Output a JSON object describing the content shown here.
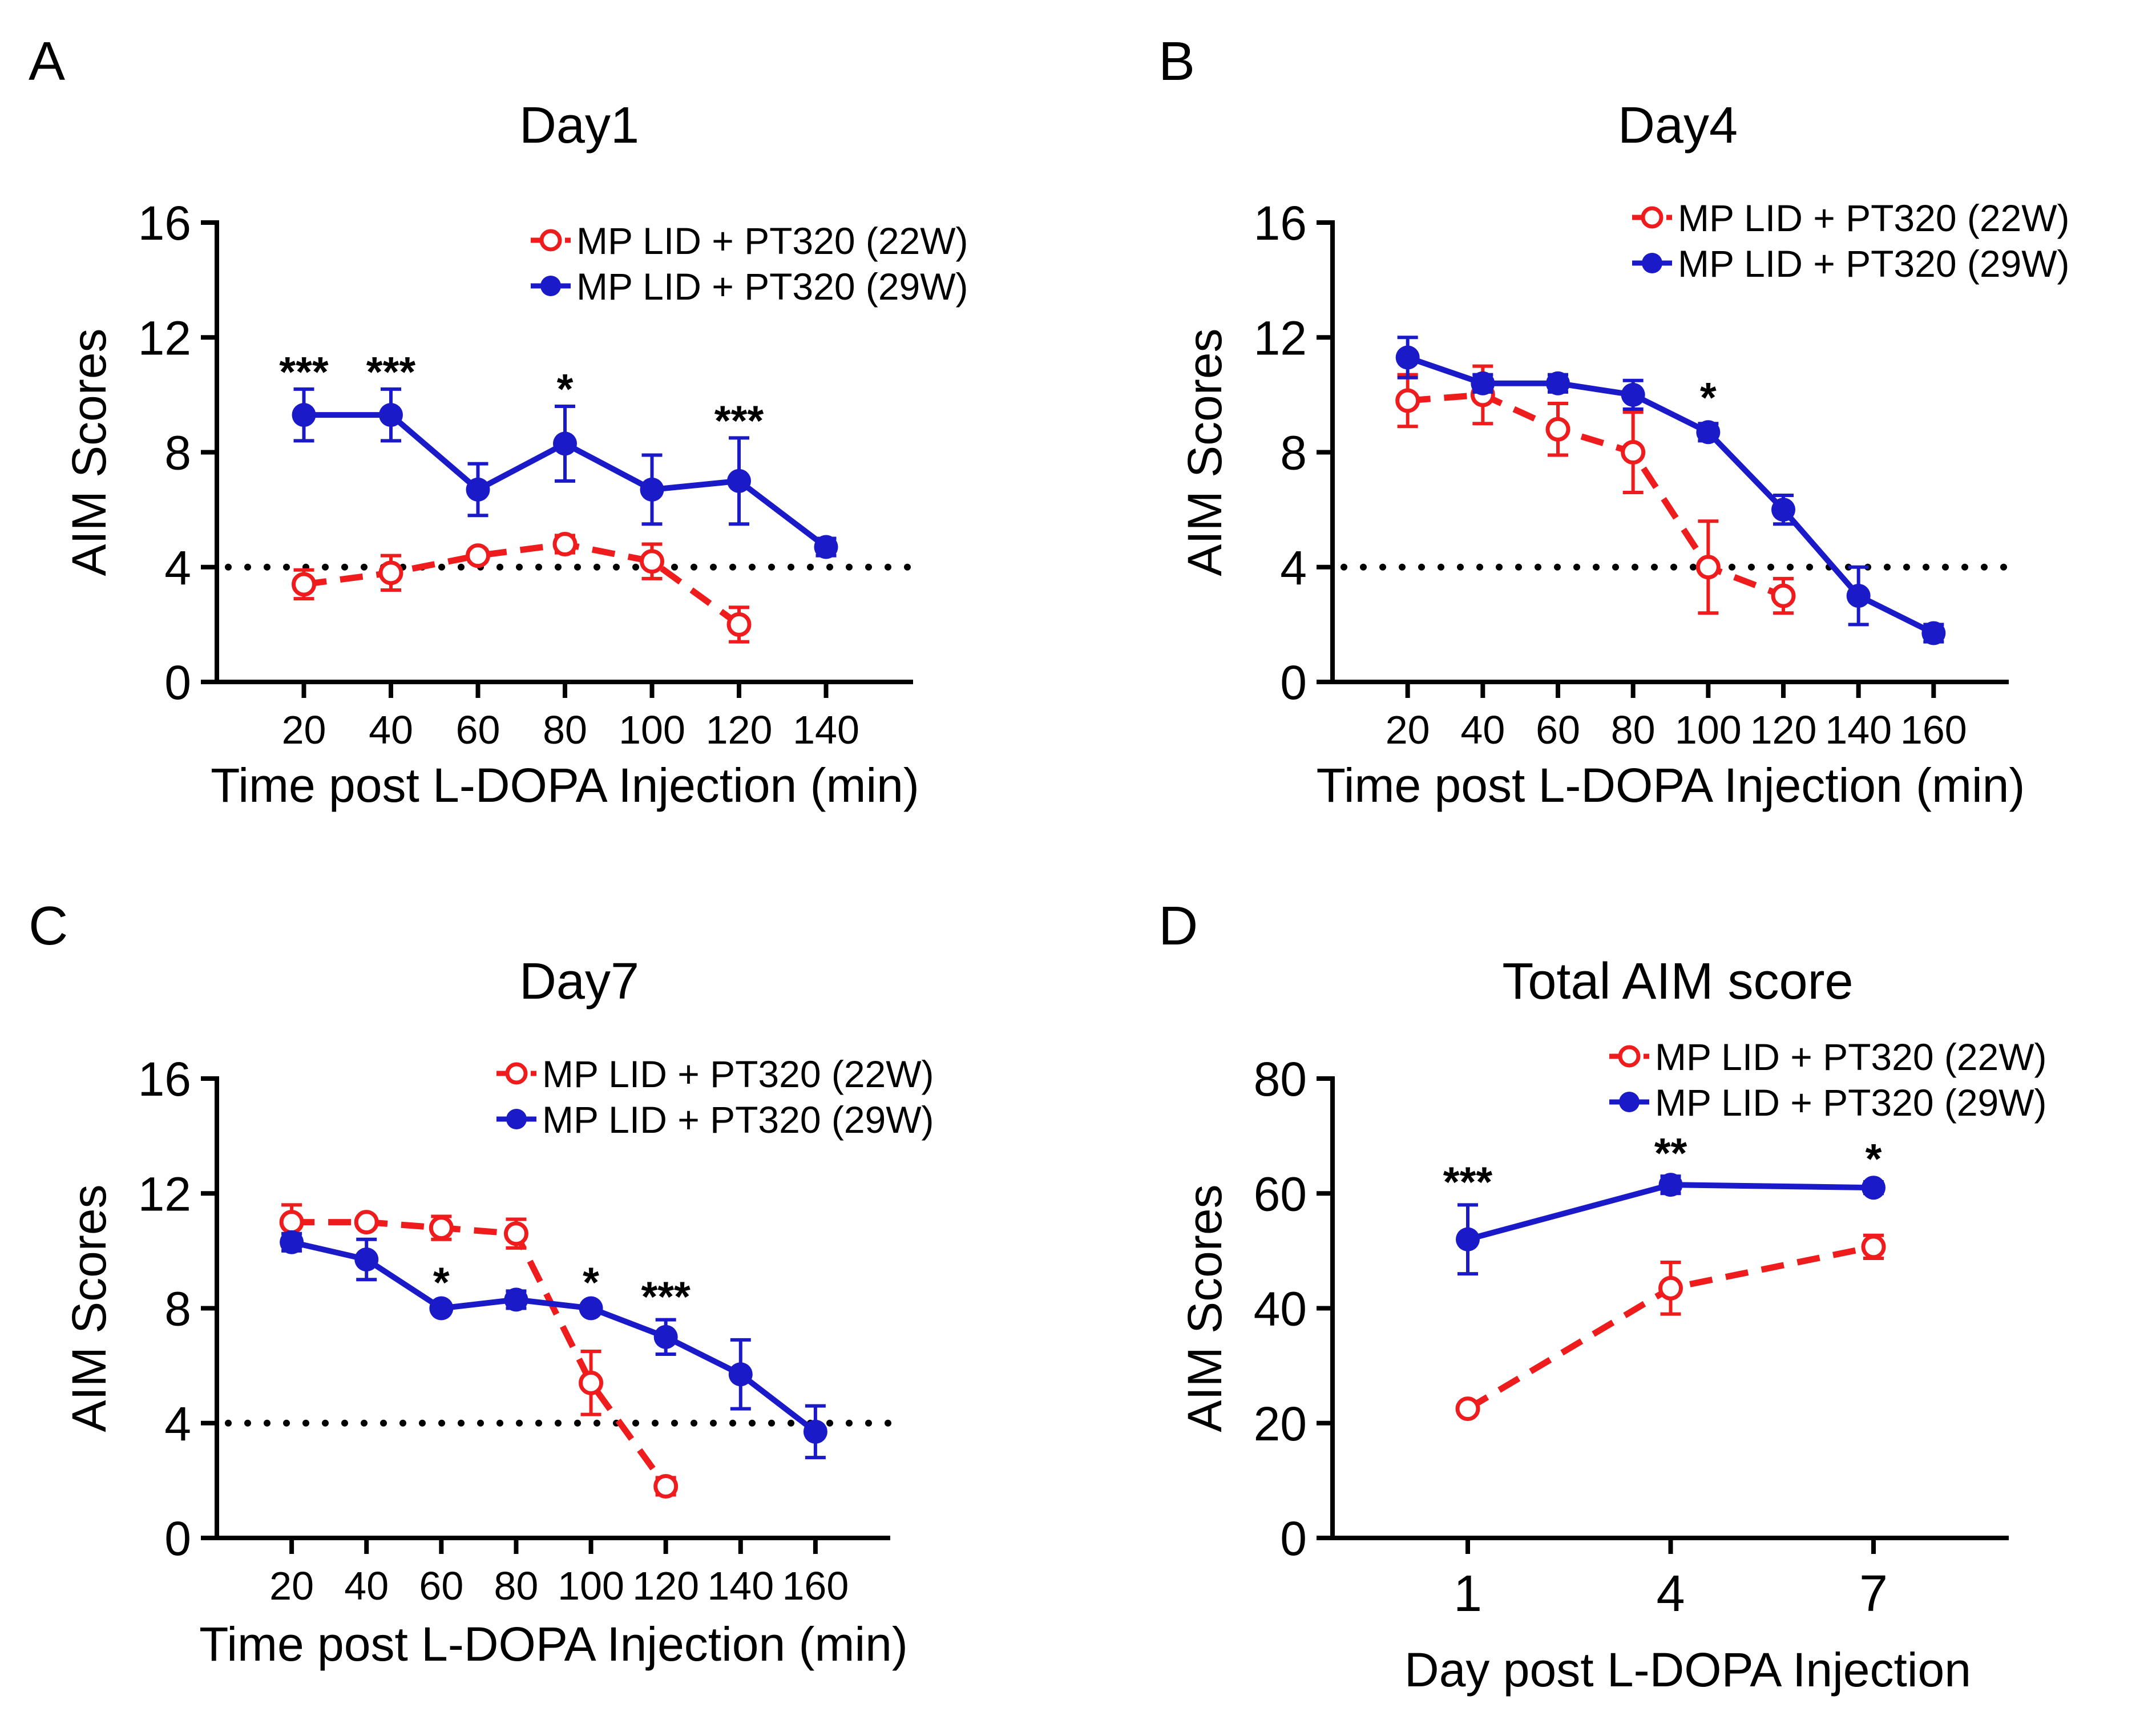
{
  "colors": {
    "series_22w": "#ee1c1c",
    "series_29w": "#1a1ac8",
    "axis": "#000000",
    "threshold": "#000000"
  },
  "chart_data": [
    {
      "panel_label": "A",
      "type": "line",
      "title": "Day1",
      "xlabel": "Time post L-DOPA Injection (min)",
      "ylabel": "AIM Scores",
      "xlim": [
        0,
        160
      ],
      "ylim": [
        0,
        16
      ],
      "x_ticks": [
        "20",
        "40",
        "60",
        "80",
        "100",
        "120",
        "140"
      ],
      "y_ticks": [
        "0",
        "4",
        "8",
        "12",
        "16"
      ],
      "threshold": 4,
      "legend_position": "top-right",
      "series": [
        {
          "name": "MP LID + PT320 (22W)",
          "style": "dashed-open",
          "x": [
            20,
            40,
            60,
            80,
            100,
            120
          ],
          "y": [
            3.4,
            3.8,
            4.4,
            4.8,
            4.2,
            2.0
          ],
          "err": [
            0.5,
            0.6,
            0.2,
            0.3,
            0.6,
            0.6
          ]
        },
        {
          "name": "MP LID + PT320 (29W)",
          "style": "solid-filled",
          "x": [
            20,
            40,
            60,
            80,
            100,
            120,
            140
          ],
          "y": [
            9.3,
            9.3,
            6.7,
            8.3,
            6.7,
            7.0,
            4.7
          ],
          "err": [
            0.9,
            0.9,
            0.9,
            1.3,
            1.2,
            1.5,
            0.3
          ]
        }
      ],
      "annotations": [
        {
          "x": 20,
          "y": 10.3,
          "text": "***"
        },
        {
          "x": 40,
          "y": 10.3,
          "text": "***"
        },
        {
          "x": 80,
          "y": 9.7,
          "text": "*"
        },
        {
          "x": 120,
          "y": 8.6,
          "text": "***"
        }
      ]
    },
    {
      "panel_label": "B",
      "type": "line",
      "title": "Day4",
      "xlabel": "Time post L-DOPA Injection (min)",
      "ylabel": "AIM Scores",
      "xlim": [
        0,
        180
      ],
      "ylim": [
        0,
        16
      ],
      "x_ticks": [
        "20",
        "40",
        "60",
        "80",
        "100",
        "120",
        "140",
        "160"
      ],
      "y_ticks": [
        "0",
        "4",
        "8",
        "12",
        "16"
      ],
      "threshold": 4,
      "legend_position": "top-right",
      "series": [
        {
          "name": "MP LID + PT320 (22W)",
          "style": "dashed-open",
          "x": [
            20,
            40,
            60,
            80,
            100,
            120
          ],
          "y": [
            9.8,
            10.0,
            8.8,
            8.0,
            4.0,
            3.0
          ],
          "err": [
            0.9,
            1.0,
            0.9,
            1.4,
            1.6,
            0.6
          ]
        },
        {
          "name": "MP LID + PT320 (29W)",
          "style": "solid-filled",
          "x": [
            20,
            40,
            60,
            80,
            100,
            120,
            140,
            160
          ],
          "y": [
            11.3,
            10.4,
            10.4,
            10.0,
            8.7,
            6.0,
            3.0,
            1.7
          ],
          "err": [
            0.7,
            0.3,
            0.3,
            0.5,
            0.3,
            0.5,
            1.0,
            0.3
          ]
        }
      ],
      "annotations": [
        {
          "x": 100,
          "y": 9.4,
          "text": "*"
        }
      ]
    },
    {
      "panel_label": "C",
      "type": "line",
      "title": "Day7",
      "xlabel": "Time post L-DOPA Injection (min)",
      "ylabel": "AIM Scores",
      "xlim": [
        0,
        180
      ],
      "ylim": [
        0,
        16
      ],
      "x_ticks": [
        "20",
        "40",
        "60",
        "80",
        "100",
        "120",
        "140",
        "160"
      ],
      "y_ticks": [
        "0",
        "4",
        "8",
        "12",
        "16"
      ],
      "threshold": 4,
      "legend_position": "top-right",
      "series": [
        {
          "name": "MP LID + PT320 (22W)",
          "style": "dashed-open",
          "x": [
            20,
            40,
            60,
            80,
            100,
            120
          ],
          "y": [
            11.0,
            11.0,
            10.8,
            10.6,
            5.4,
            1.8
          ],
          "err": [
            0.6,
            0.1,
            0.4,
            0.5,
            1.1,
            0.3
          ]
        },
        {
          "name": "MP LID + PT320 (29W)",
          "style": "solid-filled",
          "x": [
            20,
            40,
            60,
            80,
            100,
            120,
            140,
            160
          ],
          "y": [
            10.3,
            9.7,
            8.0,
            8.3,
            8.0,
            7.0,
            5.7,
            3.7
          ],
          "err": [
            0.3,
            0.7,
            0.1,
            0.3,
            0.1,
            0.6,
            1.2,
            0.9
          ]
        }
      ],
      "annotations": [
        {
          "x": 60,
          "y": 8.4,
          "text": "*"
        },
        {
          "x": 100,
          "y": 8.4,
          "text": "*"
        },
        {
          "x": 120,
          "y": 7.9,
          "text": "***"
        }
      ]
    },
    {
      "panel_label": "D",
      "type": "line",
      "title": "Total AIM score",
      "xlabel": "Day post L-DOPA Injection",
      "ylabel": "AIM Scores",
      "xlim": [
        -1,
        9
      ],
      "ylim": [
        0,
        80
      ],
      "x_ticks": [
        "1",
        "4",
        "7"
      ],
      "y_ticks": [
        "0",
        "20",
        "40",
        "60",
        "80"
      ],
      "threshold": null,
      "legend_position": "top-right",
      "series": [
        {
          "name": "MP LID + PT320 (22W)",
          "style": "dashed-open",
          "x": [
            1,
            4,
            7
          ],
          "y": [
            22.5,
            43.5,
            50.7
          ],
          "err": [
            0.8,
            4.5,
            2.0
          ]
        },
        {
          "name": "MP LID + PT320 (29W)",
          "style": "solid-filled",
          "x": [
            1,
            4,
            7
          ],
          "y": [
            52.0,
            61.5,
            61.0
          ],
          "err": [
            6.0,
            1.5,
            1.0
          ]
        }
      ],
      "annotations": [
        {
          "x": 1,
          "y": 59.5,
          "text": "***"
        },
        {
          "x": 4,
          "y": 64.5,
          "text": "**"
        },
        {
          "x": 7,
          "y": 63.5,
          "text": "*"
        }
      ]
    }
  ]
}
